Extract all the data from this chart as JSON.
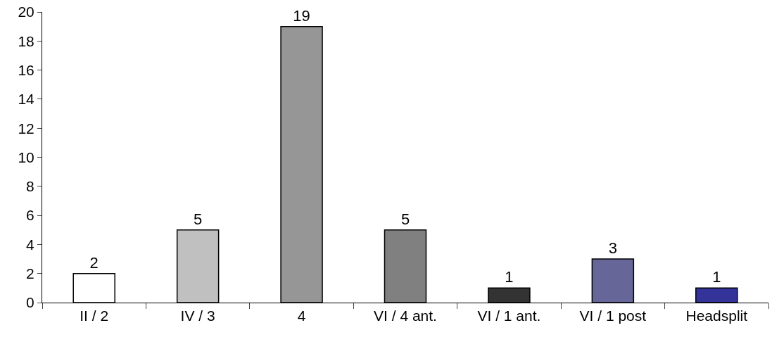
{
  "chart_data": {
    "type": "bar",
    "categories": [
      "II / 2",
      "IV / 3",
      "4",
      "VI / 4 ant.",
      "VI / 1 ant.",
      "VI / 1 post",
      "Headsplit"
    ],
    "values": [
      2,
      5,
      19,
      5,
      1,
      3,
      1
    ],
    "colors": [
      "#ffffff",
      "#c0c0c0",
      "#969696",
      "#808080",
      "#333333",
      "#666699",
      "#333399"
    ],
    "ylim": [
      0,
      20
    ],
    "yticks": [
      0,
      2,
      4,
      6,
      8,
      10,
      12,
      14,
      16,
      18,
      20
    ],
    "data_labels": true
  }
}
